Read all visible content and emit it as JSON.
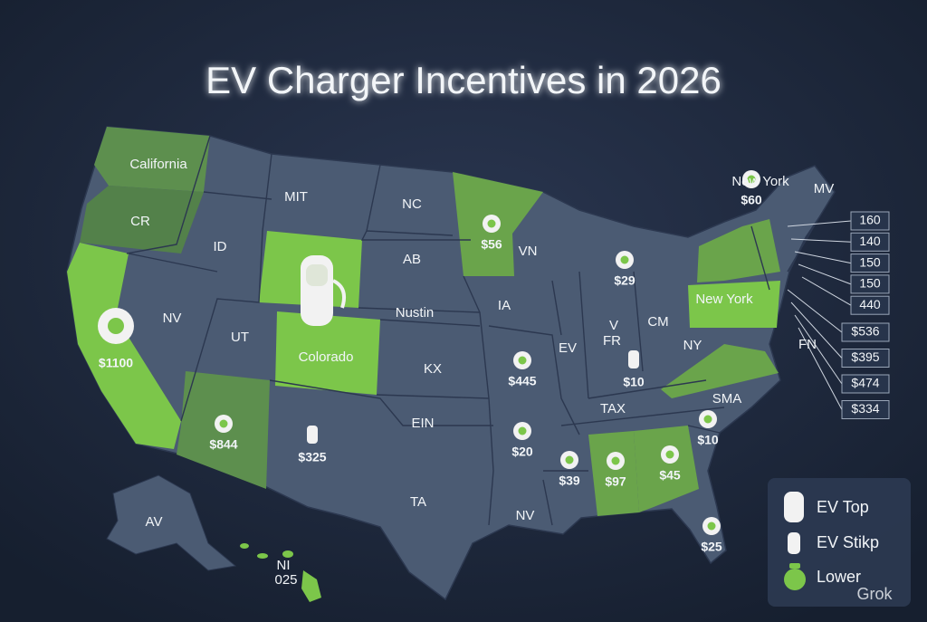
{
  "title": "EV Charger Incentives in 2026",
  "state_labels": [
    "California",
    "CR",
    "ID",
    "MIT",
    "NC",
    "AB",
    "NV",
    "UT",
    "Nustin",
    "Colorado",
    "KX",
    "IA",
    "VN",
    "EIN",
    "TA",
    "AV",
    "CM",
    "TAX",
    "SMA",
    "V",
    "FR",
    "NY",
    "EV",
    "New York",
    "New York",
    "MV",
    "FN",
    "NV",
    "025",
    "NI"
  ],
  "amounts": [
    "$60",
    "$56",
    "$29",
    "$1100",
    "$445",
    "$10",
    "$844",
    "$325",
    "$20",
    "$39",
    "$97",
    "$45",
    "$10",
    "$25"
  ],
  "side_values": [
    "160",
    "140",
    "150",
    "150",
    "440",
    "$536",
    "$395",
    "$474",
    "$334"
  ],
  "legend": [
    "EV Top",
    "EV Stikp",
    "Lower"
  ],
  "watermark": "Grok"
}
